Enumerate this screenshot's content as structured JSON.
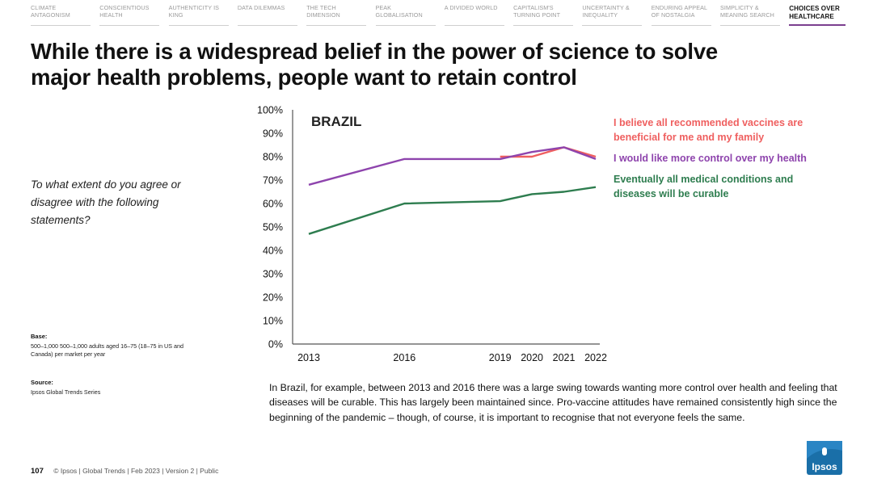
{
  "nav": {
    "items": [
      {
        "label": "Climate Antagonism",
        "active": false
      },
      {
        "label": "Conscientious Health",
        "active": false
      },
      {
        "label": "Authenticity is King",
        "active": false
      },
      {
        "label": "Data Dilemmas",
        "active": false
      },
      {
        "label": "The Tech Dimension",
        "active": false
      },
      {
        "label": "Peak Globalisation",
        "active": false
      },
      {
        "label": "A Divided World",
        "active": false
      },
      {
        "label": "Capitalism's Turning Point",
        "active": false
      },
      {
        "label": "Uncertainty & Inequality",
        "active": false
      },
      {
        "label": "Enduring Appeal of Nostalgia",
        "active": false
      },
      {
        "label": "Simplicity & Meaning Search",
        "active": false
      },
      {
        "label": "Choices over Healthcare",
        "active": true
      }
    ]
  },
  "title": "While there is a widespread belief in the power of science to solve major health problems, people want to retain control",
  "question": "To what extent do you agree or disagree with the following statements?",
  "base": {
    "heading": "Base:",
    "text": "500–1,000 500–1,000 adults aged 16–75 (18–75 in US and Canada) per market per year"
  },
  "source": {
    "heading": "Source:",
    "text": "Ipsos Global Trends Series"
  },
  "footer": {
    "page": "107",
    "text": "© Ipsos | Global Trends | Feb 2023 | Version 2 | Public"
  },
  "caption": "In Brazil, for example, between 2013 and 2016 there was a large swing towards wanting more control over health and feeling that diseases will be curable. This has largely been maintained since. Pro-vaccine attitudes have remained consistently high since the beginning of the pandemic – though, of course, it is important to recognise that not everyone feels the same.",
  "logo": {
    "label": "Ipsos",
    "color": "#1a6fa8"
  },
  "chart_data": {
    "type": "line",
    "title": "BRAZIL",
    "x": [
      2013,
      2016,
      2019,
      2020,
      2021,
      2022
    ],
    "x_tick_labels": [
      "2013",
      "2016",
      "2019",
      "2020",
      "2021",
      "2022"
    ],
    "ylim": [
      0,
      100
    ],
    "y_ticks": [
      0,
      10,
      20,
      30,
      40,
      50,
      60,
      70,
      80,
      90,
      100
    ],
    "y_tick_labels": [
      "0%",
      "10%",
      "20%",
      "30%",
      "40%",
      "50%",
      "60%",
      "70%",
      "80%",
      "90%",
      "100%"
    ],
    "grid": false,
    "legend_position": "right",
    "series": [
      {
        "name": "I believe all recommended vaccines are beneficial for me and my family",
        "color": "#ef5f5f",
        "values": [
          null,
          null,
          80,
          80,
          84,
          80
        ]
      },
      {
        "name": "I would like more control over my health",
        "color": "#8e44ad",
        "values": [
          68,
          79,
          79,
          82,
          84,
          79
        ]
      },
      {
        "name": "Eventually all medical conditions and diseases will be curable",
        "color": "#2e7d4f",
        "values": [
          47,
          60,
          61,
          64,
          65,
          67
        ]
      }
    ]
  }
}
